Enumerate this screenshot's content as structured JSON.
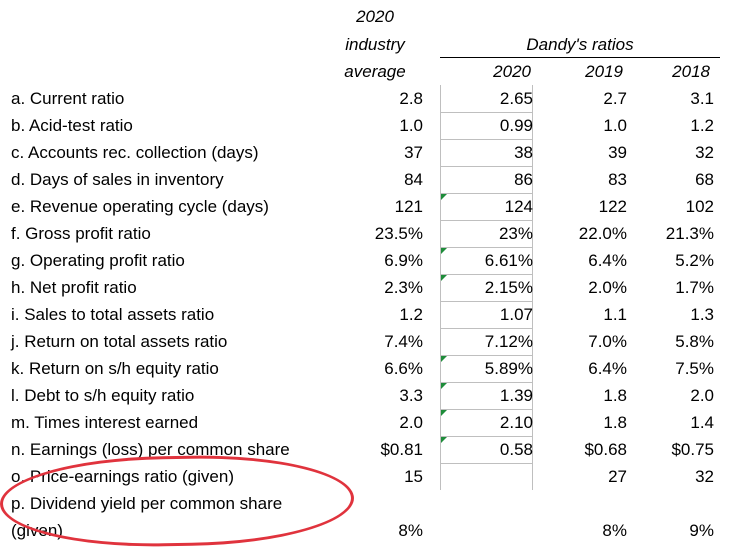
{
  "header": {
    "industry_line1": "2020",
    "industry_line2": "industry",
    "industry_line3": "average",
    "dandy_title": "Dandy's ratios",
    "years": [
      "2020",
      "2019",
      "2018"
    ]
  },
  "rows": [
    {
      "label": "a. Current ratio",
      "industry": "2.8",
      "y2020": "2.65",
      "y2019": "2.7",
      "y2018": "3.1"
    },
    {
      "label": "b. Acid-test ratio",
      "industry": "1.0",
      "y2020": "0.99",
      "y2019": "1.0",
      "y2018": "1.2"
    },
    {
      "label": "c. Accounts rec. collection (days)",
      "industry": "37",
      "y2020": "38",
      "y2019": "39",
      "y2018": "32"
    },
    {
      "label": "d. Days of sales in inventory",
      "industry": "84",
      "y2020": "86",
      "y2019": "83",
      "y2018": "68"
    },
    {
      "label": "e. Revenue operating cycle (days)",
      "industry": "121",
      "y2020": "124",
      "y2019": "122",
      "y2018": "102"
    },
    {
      "label": "f. Gross profit ratio",
      "industry": "23.5%",
      "y2020": "23%",
      "y2019": "22.0%",
      "y2018": "21.3%"
    },
    {
      "label": "g. Operating profit ratio",
      "industry": "6.9%",
      "y2020": "6.61%",
      "y2019": "6.4%",
      "y2018": "5.2%"
    },
    {
      "label": "h. Net profit ratio",
      "industry": "2.3%",
      "y2020": "2.15%",
      "y2019": "2.0%",
      "y2018": "1.7%"
    },
    {
      "label": "i. Sales to total assets ratio",
      "industry": "1.2",
      "y2020": "1.07",
      "y2019": "1.1",
      "y2018": "1.3"
    },
    {
      "label": "j. Return on total assets ratio",
      "industry": "7.4%",
      "y2020": "7.12%",
      "y2019": "7.0%",
      "y2018": "5.8%"
    },
    {
      "label": "k. Return on s/h equity ratio",
      "industry": "6.6%",
      "y2020": "5.89%",
      "y2019": "6.4%",
      "y2018": "7.5%"
    },
    {
      "label": "l. Debt to s/h equity ratio",
      "industry": "3.3",
      "y2020": "1.39",
      "y2019": "1.8",
      "y2018": "2.0"
    },
    {
      "label": "m. Times interest earned",
      "industry": "2.0",
      "y2020": "2.10",
      "y2019": "1.8",
      "y2018": "1.4"
    },
    {
      "label": "n. Earnings (loss) per common share",
      "industry": "$0.81",
      "y2020": "0.58",
      "y2019": "$0.68",
      "y2018": "$0.75"
    },
    {
      "label": "o. Price-earnings ratio (given)",
      "industry": "15",
      "y2020": "",
      "y2019": "27",
      "y2018": "32"
    },
    {
      "label": "p. Dividend yield per common share",
      "industry": "",
      "y2020": "",
      "y2019": "",
      "y2018": ""
    },
    {
      "label": "(given)",
      "industry": "8%",
      "y2020": "",
      "y2019": "8%",
      "y2018": "9%"
    }
  ]
}
